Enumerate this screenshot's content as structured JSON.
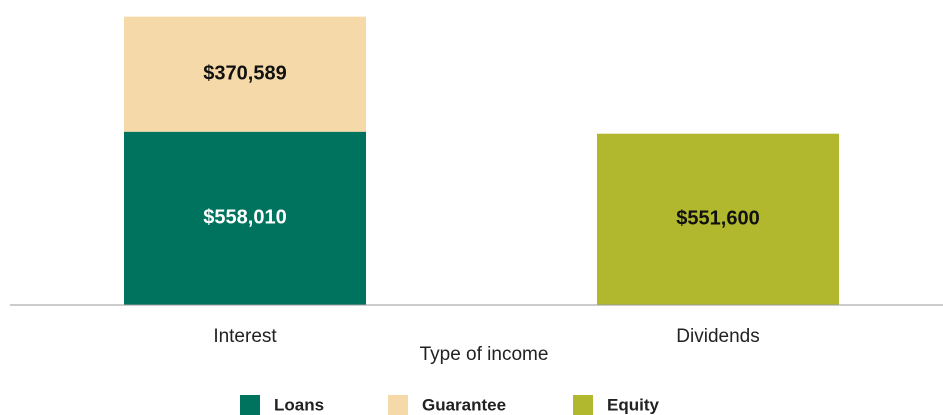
{
  "chart_data": {
    "type": "stacked_bar",
    "x_label": "Type of income",
    "categories": [
      "Interest",
      "Dividends"
    ],
    "series": [
      {
        "name": "Loans",
        "color": "#00735f",
        "label_color": "#ffffff",
        "values": [
          558010,
          null
        ],
        "value_labels": [
          "$558,010",
          null
        ]
      },
      {
        "name": "Guarantee",
        "color": "#f6d9a8",
        "label_color": "#111111",
        "values": [
          370589,
          null
        ],
        "value_labels": [
          "$370,589",
          null
        ]
      },
      {
        "name": "Equity",
        "color": "#b1b82d",
        "label_color": "#111111",
        "values": [
          null,
          551600
        ],
        "value_labels": [
          null,
          "$551,600"
        ]
      }
    ],
    "ylim": [
      0,
      950000
    ],
    "legend": "bottom"
  }
}
